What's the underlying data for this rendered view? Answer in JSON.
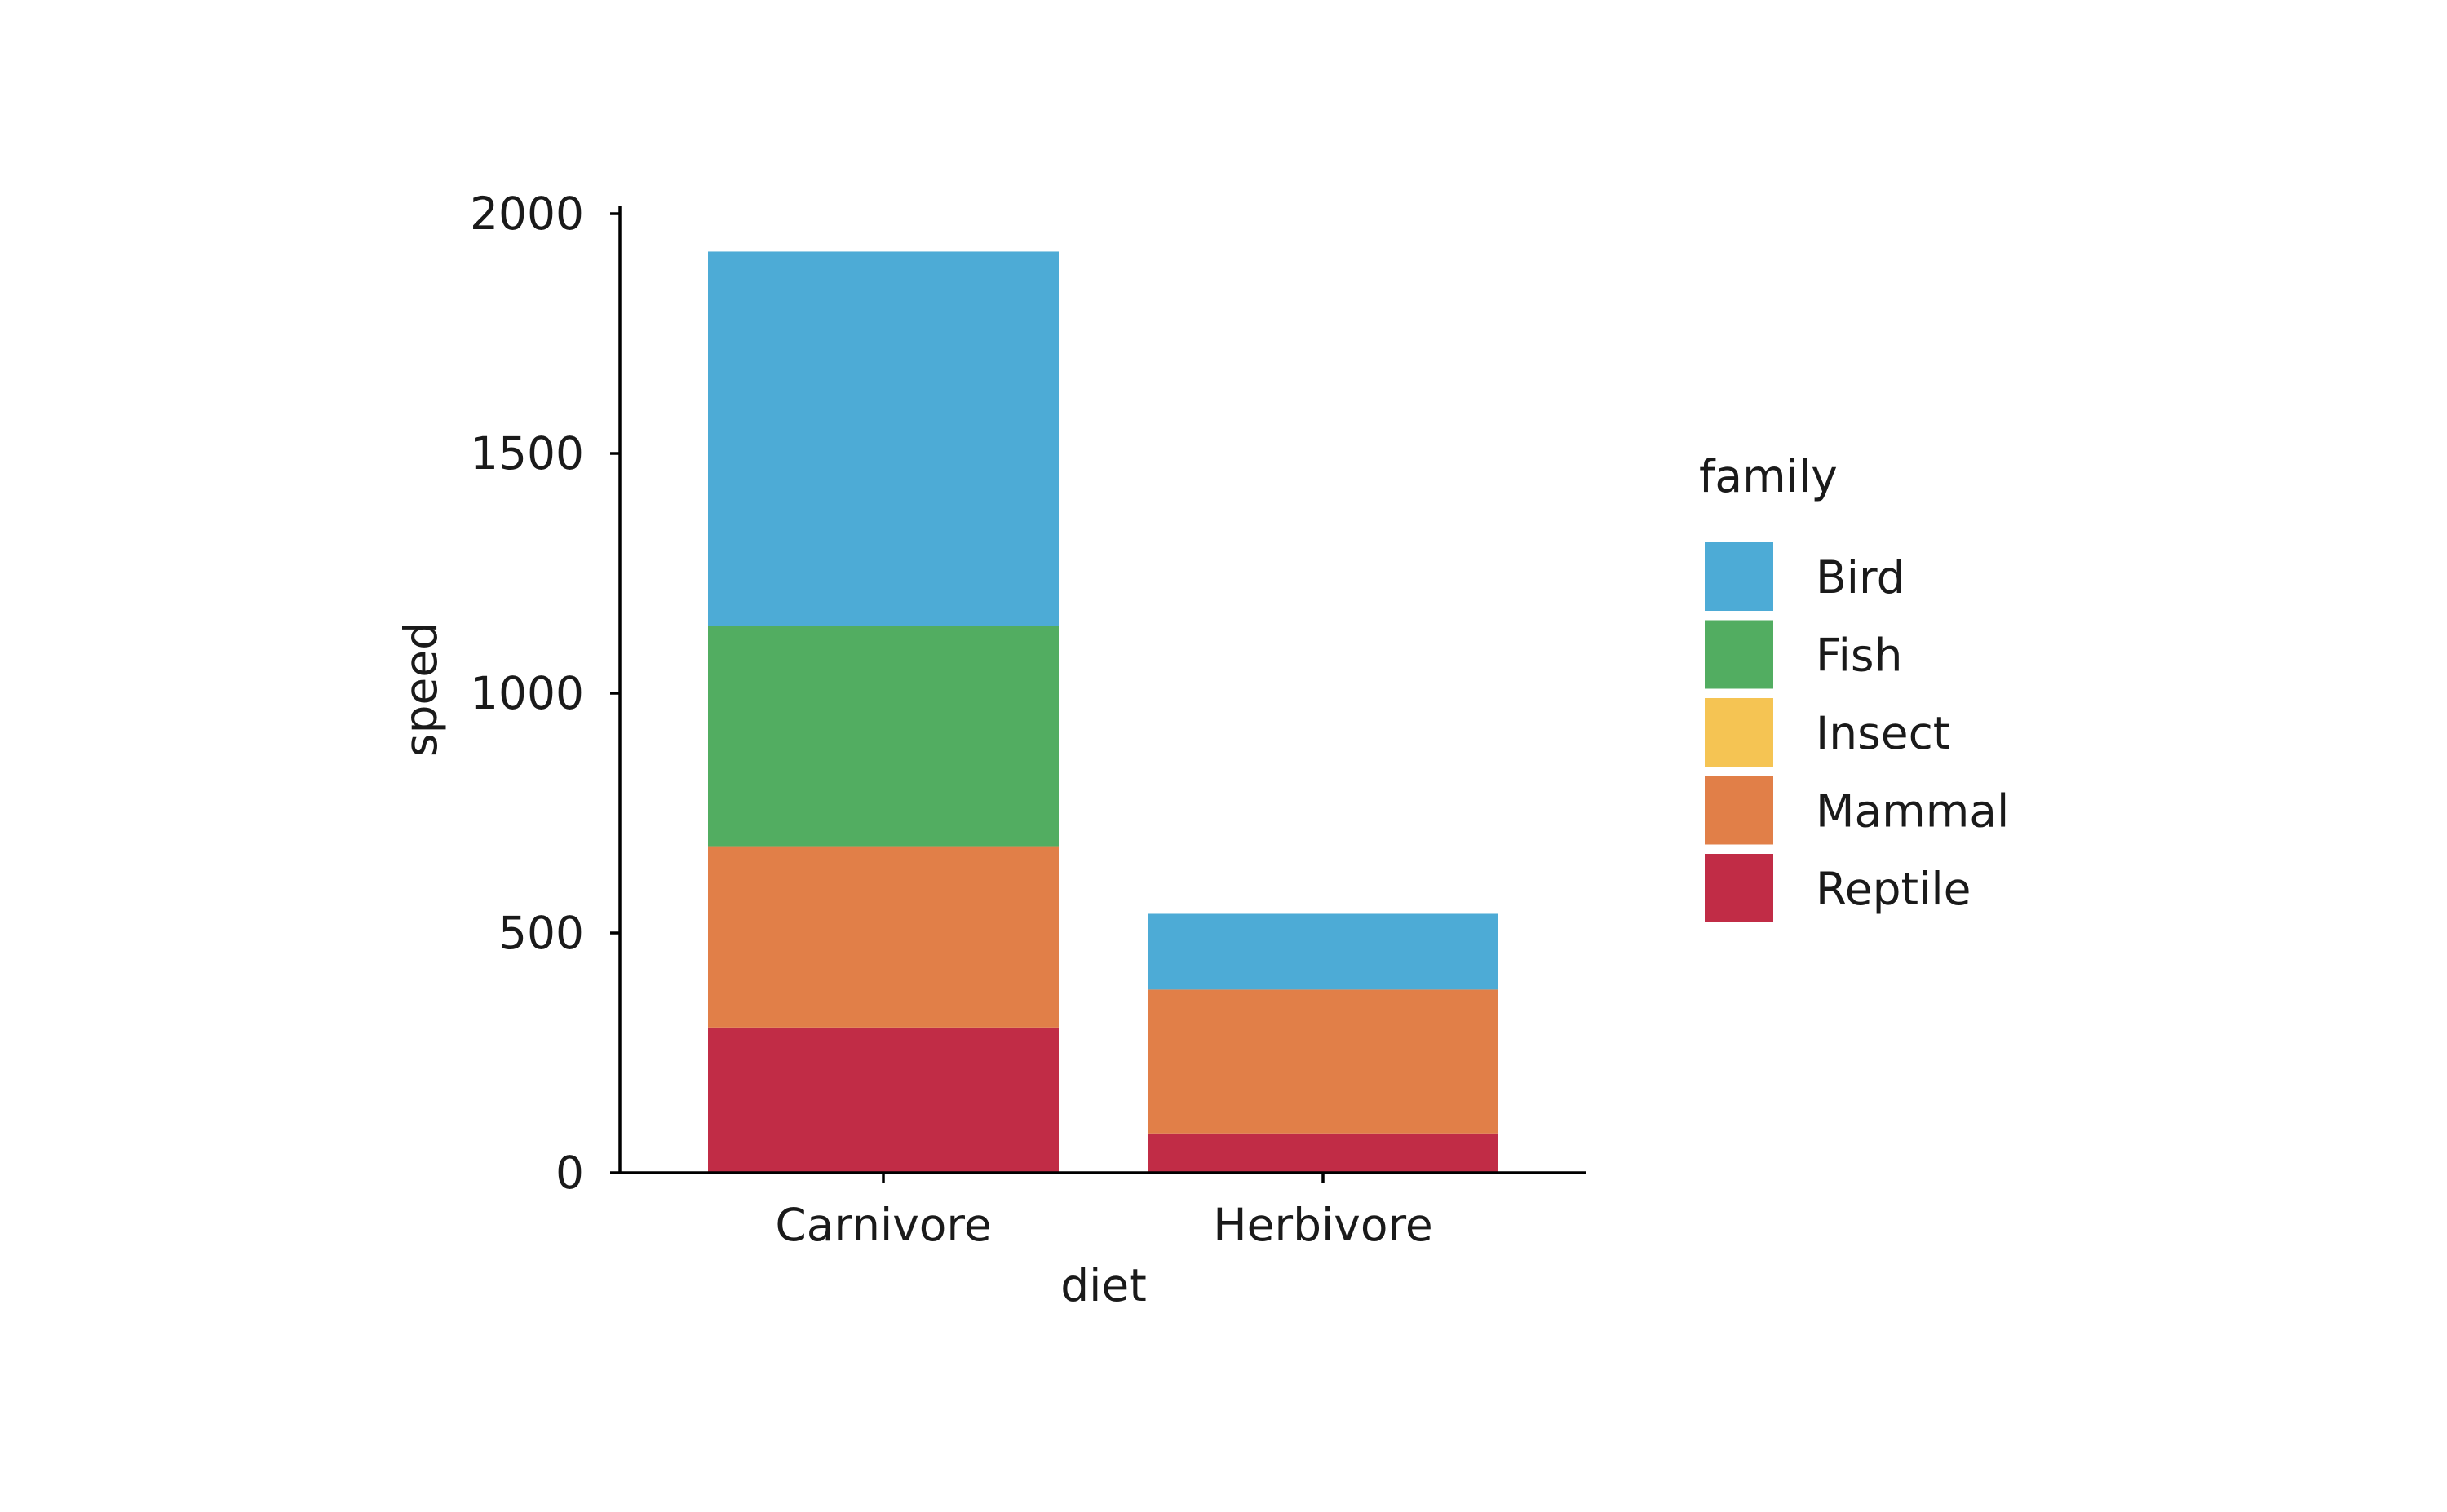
{
  "chart_data": {
    "type": "bar",
    "stacked": true,
    "title": "",
    "xlabel": "diet",
    "ylabel": "speed",
    "categories": [
      "Carnivore",
      "Herbivore"
    ],
    "ylim": [
      0,
      2000
    ],
    "yticks": [
      0,
      500,
      1000,
      1500,
      2000
    ],
    "grid": false,
    "legend": {
      "title": "family",
      "placement": "right",
      "entries": [
        "Bird",
        "Fish",
        "Insect",
        "Mammal",
        "Reptile"
      ]
    },
    "series": [
      {
        "name": "Reptile",
        "color": "#c12c46",
        "values": [
          303,
          82
        ]
      },
      {
        "name": "Mammal",
        "color": "#e17f48",
        "values": [
          378,
          300
        ]
      },
      {
        "name": "Insect",
        "color": "#f5c453",
        "values": [
          0,
          0
        ]
      },
      {
        "name": "Fish",
        "color": "#52ad61",
        "values": [
          460,
          0
        ]
      },
      {
        "name": "Bird",
        "color": "#4dabd6",
        "values": [
          780,
          158
        ]
      }
    ]
  }
}
